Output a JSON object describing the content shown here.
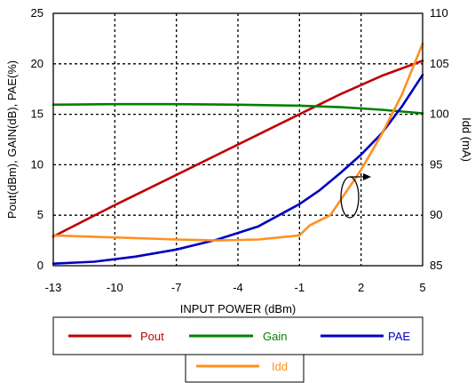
{
  "chart_data": {
    "type": "line",
    "xlabel": "INPUT POWER (dBm)",
    "ylabel_left": "Pout(dBm), GAIN(dB), PAE(%)",
    "ylabel_right": "Idd (mA)",
    "xlim": [
      -13,
      5
    ],
    "ylim_left": [
      0,
      25
    ],
    "ylim_right": [
      85,
      110
    ],
    "x_ticks": [
      "-13",
      "-10",
      "-7",
      "-4",
      "-1",
      "2",
      "5"
    ],
    "y_ticks_left": [
      "0",
      "5",
      "10",
      "15",
      "20",
      "25"
    ],
    "y_ticks_right": [
      "85",
      "90",
      "95",
      "100",
      "105",
      "110"
    ],
    "grid": true,
    "legend_position": "bottom",
    "series": [
      {
        "name": "Pout",
        "color": "#c00000",
        "axis": "left",
        "x": [
          -13,
          -10,
          -7,
          -4,
          -1,
          1,
          3,
          5
        ],
        "y": [
          2.9,
          6.0,
          9.0,
          12.0,
          15.0,
          17.0,
          18.8,
          20.3
        ]
      },
      {
        "name": "Gain",
        "color": "#008000",
        "axis": "left",
        "x": [
          -13,
          -10,
          -7,
          -4,
          -1,
          1,
          3,
          5
        ],
        "y": [
          15.95,
          16.0,
          16.0,
          15.95,
          15.85,
          15.7,
          15.45,
          15.1
        ]
      },
      {
        "name": "PAE",
        "color": "#0000c0",
        "axis": "left",
        "x": [
          -13,
          -11,
          -9,
          -7,
          -5,
          -3,
          -1,
          0,
          1,
          2,
          3,
          4,
          5
        ],
        "y": [
          0.2,
          0.4,
          0.9,
          1.6,
          2.6,
          3.9,
          6.1,
          7.5,
          9.2,
          11.0,
          13.1,
          15.8,
          18.9
        ]
      },
      {
        "name": "Idd",
        "color": "#ff9020",
        "axis": "right",
        "x": [
          -13,
          -10,
          -7,
          -5,
          -3,
          -1,
          -0.5,
          0.5,
          1,
          2,
          3,
          4,
          5
        ],
        "y": [
          88.0,
          87.8,
          87.6,
          87.5,
          87.6,
          88.0,
          89.0,
          90.0,
          91.5,
          94.5,
          98.0,
          102.0,
          107.0
        ]
      }
    ]
  },
  "legend": {
    "pout": "Pout",
    "gain": "Gain",
    "pae": "PAE",
    "idd": "Idd"
  }
}
